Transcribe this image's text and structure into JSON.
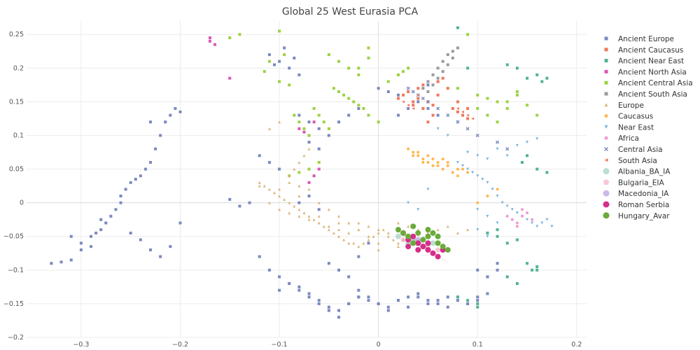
{
  "chart_data": {
    "type": "scatter",
    "title": "Global 25 West Eurasia PCA",
    "xlabel": "",
    "ylabel": "",
    "xlim": [
      -0.355,
      0.21
    ],
    "ylim": [
      -0.2,
      0.27
    ],
    "grid": true,
    "legend_position": "right",
    "x_ticks": [
      -0.3,
      -0.2,
      -0.1,
      0,
      0.1,
      0.2
    ],
    "x_tick_labels": [
      "−0.3",
      "−0.2",
      "−0.1",
      "0",
      "0.1",
      "0.2"
    ],
    "y_ticks": [
      -0.2,
      -0.15,
      -0.1,
      -0.05,
      0,
      0.05,
      0.1,
      0.15,
      0.2,
      0.25
    ],
    "y_tick_labels": [
      "−0.2",
      "−0.15",
      "−0.1",
      "−0.05",
      "0",
      "0.05",
      "0.1",
      "0.15",
      "0.2",
      "0.25"
    ],
    "series": [
      {
        "name": "Ancient Europe",
        "marker": "square",
        "color": "#7b89bf",
        "size": 4,
        "x": [
          -0.33,
          -0.32,
          -0.31,
          -0.3,
          -0.29,
          -0.285,
          -0.28,
          -0.275,
          -0.27,
          -0.265,
          -0.26,
          -0.255,
          -0.25,
          -0.245,
          -0.24,
          -0.235,
          -0.23,
          -0.225,
          -0.22,
          -0.215,
          -0.21,
          -0.205,
          -0.2,
          -0.25,
          -0.24,
          -0.23,
          -0.22,
          -0.21,
          -0.3,
          -0.29,
          -0.31,
          -0.28,
          -0.2,
          -0.23,
          -0.26,
          -0.11,
          -0.1,
          -0.09,
          -0.08,
          -0.095,
          -0.105,
          -0.085,
          -0.12,
          -0.11,
          -0.1,
          -0.09,
          -0.08,
          -0.07,
          -0.06,
          -0.05,
          -0.04,
          -0.03,
          -0.02,
          -0.05,
          -0.04,
          -0.03,
          -0.02,
          -0.01,
          -0.1,
          -0.09,
          -0.08,
          -0.07,
          -0.06,
          -0.05,
          -0.04,
          -0.03,
          -0.02,
          -0.01,
          0,
          0.01,
          0.02,
          0.03,
          0.04,
          0.05,
          0.06,
          0.07,
          0.08,
          0.09,
          0.1,
          0.11,
          -0.02,
          -0.01,
          0,
          0.01,
          0.02,
          0.03,
          0.04,
          0.05,
          0.06,
          0.07,
          0.08,
          0.09,
          0.1,
          0.11,
          0.12,
          -0.04,
          -0.03,
          -0.02,
          -0.05,
          -0.06,
          -0.07,
          -0.08,
          0.02,
          0.03,
          0.04,
          0.05,
          0.06,
          0.1,
          0.11,
          0.12,
          -0.08,
          -0.07,
          -0.06,
          -0.1,
          -0.11,
          -0.12,
          -0.13,
          -0.14,
          -0.15,
          -0.06,
          -0.07,
          0.0,
          0.01,
          0.02,
          0.05,
          0.06
        ],
        "y": [
          -0.09,
          -0.088,
          -0.085,
          -0.06,
          -0.05,
          -0.045,
          -0.04,
          -0.03,
          -0.02,
          -0.01,
          0.0,
          0.02,
          0.03,
          0.035,
          0.04,
          0.05,
          0.06,
          0.08,
          0.1,
          0.12,
          0.13,
          0.14,
          -0.03,
          -0.045,
          -0.055,
          -0.07,
          -0.08,
          -0.065,
          -0.07,
          -0.065,
          -0.05,
          -0.025,
          0.135,
          0.12,
          0.01,
          0.22,
          0.21,
          0.2,
          0.19,
          0.23,
          0.205,
          0.215,
          -0.08,
          -0.1,
          -0.11,
          -0.12,
          -0.13,
          -0.14,
          -0.15,
          -0.16,
          -0.17,
          -0.15,
          -0.14,
          -0.09,
          -0.1,
          -0.11,
          -0.08,
          -0.06,
          -0.13,
          -0.12,
          -0.125,
          -0.135,
          -0.145,
          -0.155,
          -0.16,
          -0.15,
          -0.14,
          -0.145,
          -0.15,
          -0.155,
          -0.145,
          -0.14,
          -0.135,
          -0.145,
          -0.15,
          -0.14,
          -0.145,
          -0.15,
          -0.14,
          -0.135,
          -0.13,
          -0.14,
          -0.15,
          -0.16,
          -0.145,
          -0.155,
          -0.14,
          -0.15,
          -0.145,
          -0.155,
          -0.14,
          -0.15,
          -0.145,
          -0.11,
          -0.1,
          0.12,
          0.13,
          0.14,
          0.1,
          0.11,
          0.12,
          0.13,
          0.13,
          0.14,
          0.15,
          0.14,
          0.13,
          -0.1,
          -0.11,
          -0.09,
          0.0,
          0.01,
          -0.01,
          0.05,
          0.06,
          0.07,
          0.0,
          -0.005,
          0.005,
          0.08,
          0.09,
          0.17,
          0.165,
          0.16,
          0.175,
          0.18
        ]
      },
      {
        "name": "Ancient Caucasus",
        "marker": "square",
        "color": "#f0795a",
        "size": 4,
        "x": [
          0.02,
          0.025,
          0.03,
          0.035,
          0.04,
          0.045,
          0.05,
          0.055,
          0.06,
          0.065,
          0.07,
          0.075,
          0.08,
          0.085,
          0.09,
          0.05,
          0.055,
          0.045,
          0.06,
          0.035,
          0.04,
          0.08,
          0.09
        ],
        "y": [
          0.155,
          0.16,
          0.165,
          0.15,
          0.155,
          0.14,
          0.15,
          0.145,
          0.18,
          0.185,
          0.17,
          0.14,
          0.135,
          0.13,
          0.125,
          0.12,
          0.13,
          0.175,
          0.16,
          0.145,
          0.17,
          0.15,
          0.14
        ]
      },
      {
        "name": "Ancient Near East",
        "marker": "square",
        "color": "#52b391",
        "size": 4,
        "x": [
          0.13,
          0.14,
          0.15,
          0.16,
          0.165,
          0.17,
          0.155,
          0.15,
          0.16,
          0.12,
          0.11,
          0.1,
          0.09,
          0.08,
          0.1,
          0.12,
          0.13,
          0.14,
          0.145,
          0.15,
          0.16,
          0.17,
          0.08,
          0.09,
          0.13,
          0.14,
          0.16
        ],
        "y": [
          0.205,
          0.2,
          0.185,
          0.19,
          0.18,
          0.185,
          -0.1,
          -0.09,
          -0.095,
          -0.04,
          -0.045,
          -0.15,
          -0.145,
          -0.14,
          -0.155,
          -0.05,
          -0.06,
          -0.055,
          0.06,
          0.07,
          0.05,
          0.045,
          0.26,
          0.2,
          -0.11,
          -0.12,
          -0.1
        ]
      },
      {
        "name": "Ancient North Asia",
        "marker": "square",
        "color": "#d957b3",
        "size": 4,
        "x": [
          -0.17,
          -0.17,
          -0.165,
          -0.15,
          -0.08,
          -0.075,
          -0.07,
          -0.065,
          -0.06,
          -0.065,
          -0.07
        ],
        "y": [
          0.245,
          0.24,
          0.235,
          0.185,
          0.11,
          0.105,
          0.1,
          0.12,
          0.05,
          0.04,
          0.03
        ]
      },
      {
        "name": "Ancient Central Asia",
        "marker": "square",
        "color": "#9ed243",
        "size": 4,
        "x": [
          -0.14,
          -0.15,
          -0.1,
          -0.095,
          -0.11,
          -0.115,
          -0.1,
          -0.09,
          -0.085,
          -0.08,
          -0.075,
          -0.07,
          -0.065,
          -0.06,
          -0.055,
          -0.05,
          -0.045,
          -0.04,
          -0.035,
          -0.03,
          -0.025,
          -0.02,
          -0.015,
          -0.01,
          0.0,
          -0.05,
          -0.04,
          -0.03,
          -0.02,
          -0.01,
          0.01,
          0.02,
          0.03,
          0.1,
          0.11,
          0.12,
          0.13,
          0.14,
          0.15,
          0.16,
          0.1,
          0.11,
          0.12,
          0.13,
          0.14,
          0.09,
          0.08,
          -0.06,
          -0.07,
          -0.08,
          -0.09,
          -0.02,
          -0.01,
          0.02,
          0.025
        ],
        "y": [
          0.25,
          0.245,
          0.255,
          0.22,
          0.21,
          0.195,
          0.18,
          0.175,
          0.13,
          0.12,
          0.11,
          0.1,
          0.14,
          0.13,
          0.12,
          0.11,
          0.17,
          0.165,
          0.16,
          0.155,
          0.15,
          0.145,
          0.14,
          0.13,
          0.12,
          0.22,
          0.21,
          0.2,
          0.19,
          0.23,
          0.18,
          0.19,
          0.2,
          0.16,
          0.155,
          0.15,
          0.14,
          0.16,
          0.145,
          0.13,
          0.14,
          0.13,
          0.12,
          0.15,
          0.165,
          0.25,
          0.17,
          0.06,
          0.05,
          0.045,
          0.04,
          0.2,
          0.215,
          0.19,
          0.195
        ]
      },
      {
        "name": "Ancient South Asia",
        "marker": "square",
        "color": "#9b9b9b",
        "size": 4,
        "x": [
          0.05,
          0.055,
          0.06,
          0.065,
          0.07,
          0.075,
          0.08,
          0.055,
          0.06,
          0.065,
          0.07,
          0.045,
          0.05,
          0.075
        ],
        "y": [
          0.18,
          0.19,
          0.2,
          0.21,
          0.22,
          0.225,
          0.23,
          0.175,
          0.185,
          0.195,
          0.205,
          0.17,
          0.165,
          0.215
        ]
      },
      {
        "name": "Europe",
        "marker": "triangle-up",
        "color": "#dbb77c",
        "size": 4,
        "x": [
          -0.12,
          -0.115,
          -0.11,
          -0.105,
          -0.1,
          -0.095,
          -0.09,
          -0.085,
          -0.08,
          -0.075,
          -0.07,
          -0.065,
          -0.06,
          -0.055,
          -0.05,
          -0.045,
          -0.04,
          -0.035,
          -0.03,
          -0.025,
          -0.02,
          -0.015,
          -0.01,
          -0.005,
          0.0,
          0.005,
          0.01,
          0.015,
          0.02,
          0.025,
          0.03,
          -0.11,
          -0.1,
          -0.09,
          -0.08,
          -0.07,
          -0.06,
          -0.05,
          -0.04,
          -0.03,
          -0.02,
          -0.01,
          0.0,
          0.01,
          0.02,
          0.03,
          0.04,
          0.05,
          0.06,
          0.07,
          0.08,
          0.09,
          -0.09,
          -0.08,
          -0.07,
          -0.06,
          -0.05,
          -0.04,
          -0.03,
          -0.02,
          -0.01,
          0.0,
          -0.12,
          -0.1,
          -0.08,
          -0.06,
          -0.04,
          -0.02,
          0.0,
          0.02,
          0.04,
          0.06,
          -0.07,
          -0.075,
          -0.08,
          -0.085,
          -0.09,
          -0.1,
          -0.11
        ],
        "y": [
          0.03,
          0.025,
          0.02,
          0.015,
          0.01,
          0.005,
          0.0,
          -0.005,
          -0.01,
          -0.015,
          -0.02,
          -0.025,
          -0.03,
          -0.035,
          -0.04,
          -0.045,
          -0.05,
          -0.055,
          -0.06,
          -0.06,
          -0.065,
          -0.06,
          -0.055,
          -0.05,
          -0.045,
          -0.04,
          -0.05,
          -0.055,
          -0.06,
          -0.055,
          -0.05,
          0.0,
          -0.01,
          -0.015,
          -0.02,
          -0.025,
          -0.03,
          -0.035,
          -0.04,
          -0.045,
          -0.03,
          -0.035,
          -0.04,
          -0.045,
          -0.03,
          -0.035,
          -0.04,
          -0.045,
          -0.04,
          -0.035,
          -0.045,
          -0.04,
          0.03,
          0.025,
          0.02,
          0.0,
          -0.01,
          -0.02,
          -0.03,
          -0.04,
          -0.05,
          -0.06,
          0.025,
          0.02,
          0.01,
          -0.02,
          -0.03,
          -0.04,
          -0.07,
          -0.065,
          -0.07,
          -0.06,
          0.08,
          0.07,
          0.06,
          0.05,
          0.04,
          0.12,
          0.11
        ]
      },
      {
        "name": "Caucasus",
        "marker": "circle",
        "color": "#ffb74d",
        "size": 4,
        "x": [
          0.03,
          0.035,
          0.04,
          0.045,
          0.05,
          0.055,
          0.06,
          0.065,
          0.07,
          0.075,
          0.08,
          0.085,
          0.09,
          0.04,
          0.05,
          0.06,
          0.07,
          0.08,
          0.035,
          0.045,
          0.055,
          0.065,
          0.1,
          0.11,
          0.12
        ],
        "y": [
          0.08,
          0.075,
          0.07,
          0.065,
          0.06,
          0.065,
          0.055,
          0.05,
          0.06,
          0.045,
          0.04,
          0.05,
          0.045,
          0.075,
          0.07,
          0.06,
          0.055,
          0.05,
          0.07,
          0.06,
          0.055,
          0.065,
          0.0,
          0.01,
          0.02
        ]
      },
      {
        "name": "Near East",
        "marker": "triangle-down",
        "color": "#7ab6dd",
        "size": 4,
        "x": [
          0.08,
          0.085,
          0.09,
          0.095,
          0.1,
          0.105,
          0.11,
          0.115,
          0.12,
          0.125,
          0.13,
          0.135,
          0.14,
          0.145,
          0.15,
          0.155,
          0.16,
          0.165,
          0.17,
          0.175,
          0.09,
          0.1,
          0.11,
          0.12,
          0.13,
          0.14,
          0.15,
          0.16,
          0.07,
          0.08,
          0.06,
          0.1,
          0.11,
          0.12,
          0.1,
          0.11,
          0.03,
          0.04,
          0.05
        ],
        "y": [
          0.06,
          0.055,
          0.05,
          0.045,
          0.04,
          0.035,
          0.03,
          0.02,
          0.01,
          0.0,
          -0.005,
          -0.01,
          -0.015,
          -0.02,
          -0.025,
          -0.03,
          -0.035,
          -0.03,
          -0.025,
          -0.035,
          0.075,
          0.07,
          0.065,
          0.08,
          0.07,
          0.085,
          0.09,
          0.095,
          0.1,
          0.12,
          0.11,
          -0.01,
          -0.02,
          -0.03,
          -0.04,
          -0.05,
          0.0,
          -0.01,
          0.02
        ]
      },
      {
        "name": "Africa",
        "marker": "circle",
        "color": "#f29ad0",
        "size": 4,
        "x": [
          0.13,
          0.135,
          0.14,
          0.145,
          0.15,
          0.155,
          0.14,
          0.145
        ],
        "y": [
          -0.02,
          -0.025,
          -0.03,
          -0.02,
          -0.015,
          -0.025,
          -0.035,
          -0.01
        ]
      },
      {
        "name": "Central Asia",
        "marker": "x",
        "color": "#7b89bf",
        "size": 4,
        "x": [
          0.03,
          0.035,
          0.04,
          0.045,
          0.05,
          0.06,
          0.07,
          0.08,
          0.09,
          0.1,
          0.12,
          0.13
        ],
        "y": [
          0.17,
          0.165,
          0.16,
          0.155,
          0.15,
          0.14,
          0.13,
          0.12,
          0.11,
          0.1,
          0.09,
          0.08
        ]
      },
      {
        "name": "South Asia",
        "marker": "triangle-left",
        "color": "#f0795a",
        "size": 4,
        "x": [
          0.02,
          0.025,
          0.03,
          0.035,
          0.04,
          0.08,
          0.085,
          0.09,
          0.095
        ],
        "y": [
          0.155,
          0.15,
          0.145,
          0.14,
          0.16,
          0.14,
          0.135,
          0.13,
          0.125
        ]
      },
      {
        "name": "Albania_BA_IA",
        "marker": "circle",
        "color": "#8fc9b0",
        "size": 8,
        "opacity": 0.6,
        "x": [
          0.02,
          0.03,
          0.035,
          0.045,
          0.055,
          0.065
        ],
        "y": [
          -0.05,
          -0.06,
          -0.055,
          -0.065,
          -0.06,
          -0.07
        ]
      },
      {
        "name": "Bulgaria_EIA",
        "marker": "pentagon",
        "color": "#f3a1b4",
        "size": 8,
        "opacity": 0.6,
        "x": [
          0.025,
          0.04,
          0.05,
          0.06
        ],
        "y": [
          -0.055,
          -0.06,
          -0.065,
          -0.07
        ]
      },
      {
        "name": "Macedonia_IA",
        "marker": "circle",
        "color": "#a78cd8",
        "size": 8,
        "opacity": 0.6,
        "x": [
          0.03,
          0.04,
          0.05
        ],
        "y": [
          -0.05,
          -0.055,
          -0.06
        ]
      },
      {
        "name": "Roman Serbia",
        "marker": "circle",
        "color": "#d42e8a",
        "size": 8,
        "x": [
          0.025,
          0.03,
          0.035,
          0.04,
          0.045,
          0.05,
          0.055,
          0.06,
          0.065,
          0.03,
          0.04,
          0.05
        ],
        "y": [
          -0.045,
          -0.055,
          -0.05,
          -0.06,
          -0.065,
          -0.07,
          -0.075,
          -0.08,
          -0.07,
          -0.065,
          -0.07,
          -0.06
        ]
      },
      {
        "name": "Hungary_Avar",
        "marker": "circle",
        "color": "#6aab3a",
        "size": 8,
        "x": [
          0.02,
          0.025,
          0.03,
          0.035,
          0.04,
          0.045,
          0.05,
          0.055,
          0.06,
          0.065,
          0.07,
          0.035,
          0.05,
          0.06
        ],
        "y": [
          -0.04,
          -0.045,
          -0.05,
          -0.035,
          -0.045,
          -0.055,
          -0.05,
          -0.045,
          -0.06,
          -0.065,
          -0.07,
          -0.06,
          -0.04,
          -0.05
        ]
      }
    ],
    "shaded_region": {
      "color": "#f3a1b4",
      "opacity": 0.35,
      "points": [
        [
          0.02,
          -0.045
        ],
        [
          0.04,
          -0.055
        ],
        [
          0.075,
          -0.095
        ],
        [
          0.06,
          -0.08
        ]
      ]
    }
  }
}
